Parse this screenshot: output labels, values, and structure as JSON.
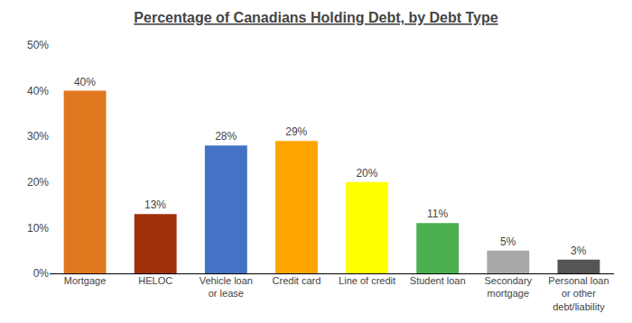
{
  "chart_data": {
    "type": "bar",
    "title": "Percentage of Canadians Holding Debt, by Debt Type",
    "categories": [
      "Mortgage",
      "HELOC",
      "Vehicle loan\nor lease",
      "Credit card",
      "Line of credit",
      "Student loan",
      "Secondary\nmortgage",
      "Personal loan\nor other\ndebt/liability"
    ],
    "values": [
      40,
      13,
      28,
      29,
      20,
      11,
      5,
      3
    ],
    "value_labels": [
      "40%",
      "13%",
      "28%",
      "29%",
      "20%",
      "11%",
      "5%",
      "3%"
    ],
    "data_labels": true,
    "colors": [
      "#E07820",
      "#A0320A",
      "#4472C4",
      "#FFA500",
      "#FFFF00",
      "#4CAF50",
      "#A9A9A9",
      "#555555"
    ],
    "ylim": [
      0,
      50
    ],
    "yticks": [
      {
        "value": 0,
        "label": "0%"
      },
      {
        "value": 10,
        "label": "10%"
      },
      {
        "value": 20,
        "label": "20%"
      },
      {
        "value": 30,
        "label": "30%"
      },
      {
        "value": 40,
        "label": "40%"
      },
      {
        "value": 50,
        "label": "50%"
      }
    ],
    "grid": false
  }
}
